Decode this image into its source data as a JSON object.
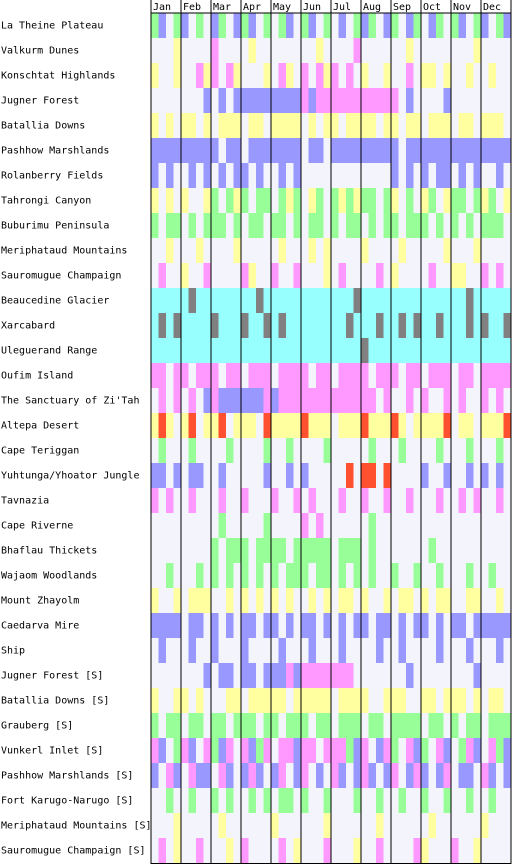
{
  "months": [
    "Jan",
    "Feb",
    "Mar",
    "Apr",
    "May",
    "Jun",
    "Jul",
    "Aug",
    "Sep",
    "Oct",
    "Nov",
    "Dec"
  ],
  "palette": {
    "w": "#f4f4fc",
    "y": "#ffffa0",
    "b": "#9898ff",
    "p": "#ff98ff",
    "g": "#98ff98",
    "c": "#98ffff",
    "r": "#ff5030",
    "k": "#808080"
  },
  "zones": [
    {
      "name": "La Theine Plateau",
      "pattern": "gbwgbwgwbgwbgbwgwgbwgbwgwbwgbgwbgwbgwbgwgbwgbwgb"
    },
    {
      "name": "Valkurm Dunes",
      "pattern": "wwwywwwwpwwwwywwwwwwwwywwwwpwwwwwwywwwwwwwwywwww"
    },
    {
      "name": "Konschtat Highlands",
      "pattern": "ywwywwpypwpywwwywpywpwpypwpwywwywwpwyywywwywwyww"
    },
    {
      "name": "Jugner Forest",
      "pattern": "wwwwwwwbwbwbbbbbbbbbpbpppppppppppwbwwwwbwwwwwwww"
    },
    {
      "name": "Batallia Downs",
      "pattern": "ywywyywywyyywyywyyyywywyywyyyywyywyywyyywyywyyyw"
    },
    {
      "name": "Pashhow Marshlands",
      "pattern": "bbbbbbbbbwbbwbbbbbbbwbbwbbbbbbbbbwbbbbbbbbbbbbbb"
    },
    {
      "name": "Rolanberry Fields",
      "pattern": "bwbwwbwbwbwbbwbwwbwbwwwwwwwwwwwwbwbwbwbbwbwbwwbw"
    },
    {
      "name": "Tahrongi Canyon",
      "pattern": "ywywywwygwgygwggwgygwygwgygyggwgywgwygwyggwgygwy"
    },
    {
      "name": "Buburimu Peninsula",
      "pattern": "gwggwgwgggwgwggwggwgwggwgwggwgwggwgggwgwgwgwgggw"
    },
    {
      "name": "Meriphataud Mountains",
      "pattern": "wwywwwywwwwywwwwwywwwywywwwwywwwwywwwwwywwwywwww"
    },
    {
      "name": "Sauromugue Champaign",
      "pattern": "wpwwywwpwwwwpywwpwwpwwwywpwwwwpwywwwwpwwyywwpwpw"
    },
    {
      "name": "Beaucedine Glacier",
      "pattern": "ccccckcccccccckcccccccccccckcccccccccccccckccccc"
    },
    {
      "name": "Xarcabard",
      "pattern": "ckckcccckccckcckckcccccccckccckcckckcckccckckcck"
    },
    {
      "name": "Uleguerand Range",
      "pattern": "cccccccccccccccccccccccccccckccccccccccccccccccc"
    },
    {
      "name": "Oufim Island",
      "pattern": "ppwppwpppwppwpppwppppwppwppppwpppwppwpppwppwpppp"
    },
    {
      "name": "The Sanctuary of Zi'Tah",
      "pattern": "wpwpwpwbpbbbbbbpbpppppppppppppwpwwpwpwwpwpwwpwpw"
    },
    {
      "name": "Altepa Desert",
      "pattern": "yrywyrwyyrwyyywryyyyryyywyyyryyyrywyyyyrwyywyyyr"
    },
    {
      "name": "Cape Teriggan",
      "pattern": "wgwwwgwwwwgwwwwgwwgwwwwgwwwwwgwwwgwwwwgwwwgwwwgw"
    },
    {
      "name": "Yuhtunga/Yhoator Jungle",
      "pattern": "bbwbwbbwwbwwwwwbwwbwbwwwwwrwrrwrwwwwbwwbwwbwbwbw"
    },
    {
      "name": "Tavnazia",
      "pattern": "pwpwwpwwwpwwpwwwpwwpwpwwwpwwpwwpwwpwwwpwwpwpwwpw"
    },
    {
      "name": "Cape Riverne",
      "pattern": "wwwwwwwwwgwwwwwgwwwwpwpwwwwwwgwwwwwwwwwwwwwwwwww"
    },
    {
      "name": "Bhaflau Thickets",
      "pattern": "wwwwwwwwgwgggwggggwgggggwgggwgwwwwwwwgwwwwwwwwww"
    },
    {
      "name": "Wajaom Woodlands",
      "pattern": "wwgwwwgwgwgwgwgwgwgggwggwgwgwgwwgwwgwwgwwwgwwgww"
    },
    {
      "name": "Mount Zhayolm",
      "pattern": "ywwywyyywwywywywywywwywywyywywwywyywywyywwyywwyw"
    },
    {
      "name": "Caedarva Mire",
      "pattern": "bbbbwbbwbwbwbbwbbwbwbbwbwbwbbwbbwbwbbwbwbbwbbbbb"
    },
    {
      "name": "Ship",
      "pattern": "wbwwwbwwbwwwbwwwwbwwwbwwwbwwwwbwwbwwwwbwwwbwwwbw"
    },
    {
      "name": "Jugner Forest [S]",
      "pattern": "wwwwwwwbwbbwbbwbbbpbpppppppwwwwwwwbwwwwwwwwbwwww"
    },
    {
      "name": "Batallia Downs [S]",
      "pattern": "ywwyywywwwyywyyyyywyyyyywyyyywwyyywwyywyyywywyyw"
    },
    {
      "name": "Grauberg [S]",
      "pattern": "gwggwggwggwgggwggwgggwggwgggwggwggggwggwgwggwggg"
    },
    {
      "name": "Vunkerl Inlet [S]",
      "pattern": "pbwgpbwpgbpwpbgpwppbppwpppgbpwbpgwpbgwpbwgpbwpgb"
    },
    {
      "name": "Pashhow Marshlands [S]",
      "pattern": "bwpbwpbbwpbwbpbwbpwbpwbwpbwbpbwbpwbpbwbpwbbwpbwb"
    },
    {
      "name": "Fort Karugo-Narugo [S]",
      "pattern": "wwgwwgwwgwgwwgwgwggwgwwgwwwgwwgwwgwwgwwgwwgwwgww"
    },
    {
      "name": "Meriphataud Mountains [S]",
      "pattern": "wwwywwwwwywwwwwwywwwwwwywwwwwwywwwwwwywwwwwwywww"
    },
    {
      "name": "Sauromugue Champaign [S]",
      "pattern": "wpwywwpwwwywpwwwwpwywwwpwwwywwpwwwwpywwwpwwywwww"
    }
  ]
}
